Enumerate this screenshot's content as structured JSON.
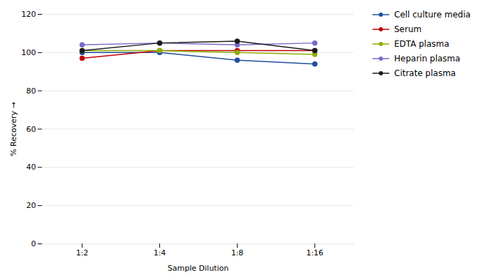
{
  "chart_data": {
    "type": "line",
    "categories": [
      "1:2",
      "1:4",
      "1:8",
      "1:16"
    ],
    "series": [
      {
        "name": "Cell culture media",
        "color": "#1f4e9c",
        "values": [
          100,
          100,
          96,
          94
        ]
      },
      {
        "name": "Serum",
        "color": "#c00000",
        "values": [
          97,
          101,
          101,
          101
        ]
      },
      {
        "name": "EDTA plasma",
        "color": "#8db000",
        "values": [
          101,
          101,
          100,
          99
        ]
      },
      {
        "name": "Heparin plasma",
        "color": "#7b68c8",
        "values": [
          104,
          105,
          104,
          105
        ]
      },
      {
        "name": "Citrate plasma",
        "color": "#1a1a1a",
        "values": [
          101,
          105,
          106,
          101
        ]
      }
    ],
    "xlabel": "Sample Dilution",
    "ylabel": "% Recovery",
    "ylim": [
      0,
      120
    ],
    "yticks": [
      0,
      20,
      40,
      60,
      80,
      100,
      120
    ],
    "grid": true,
    "legend": "right",
    "marker": "circle"
  }
}
